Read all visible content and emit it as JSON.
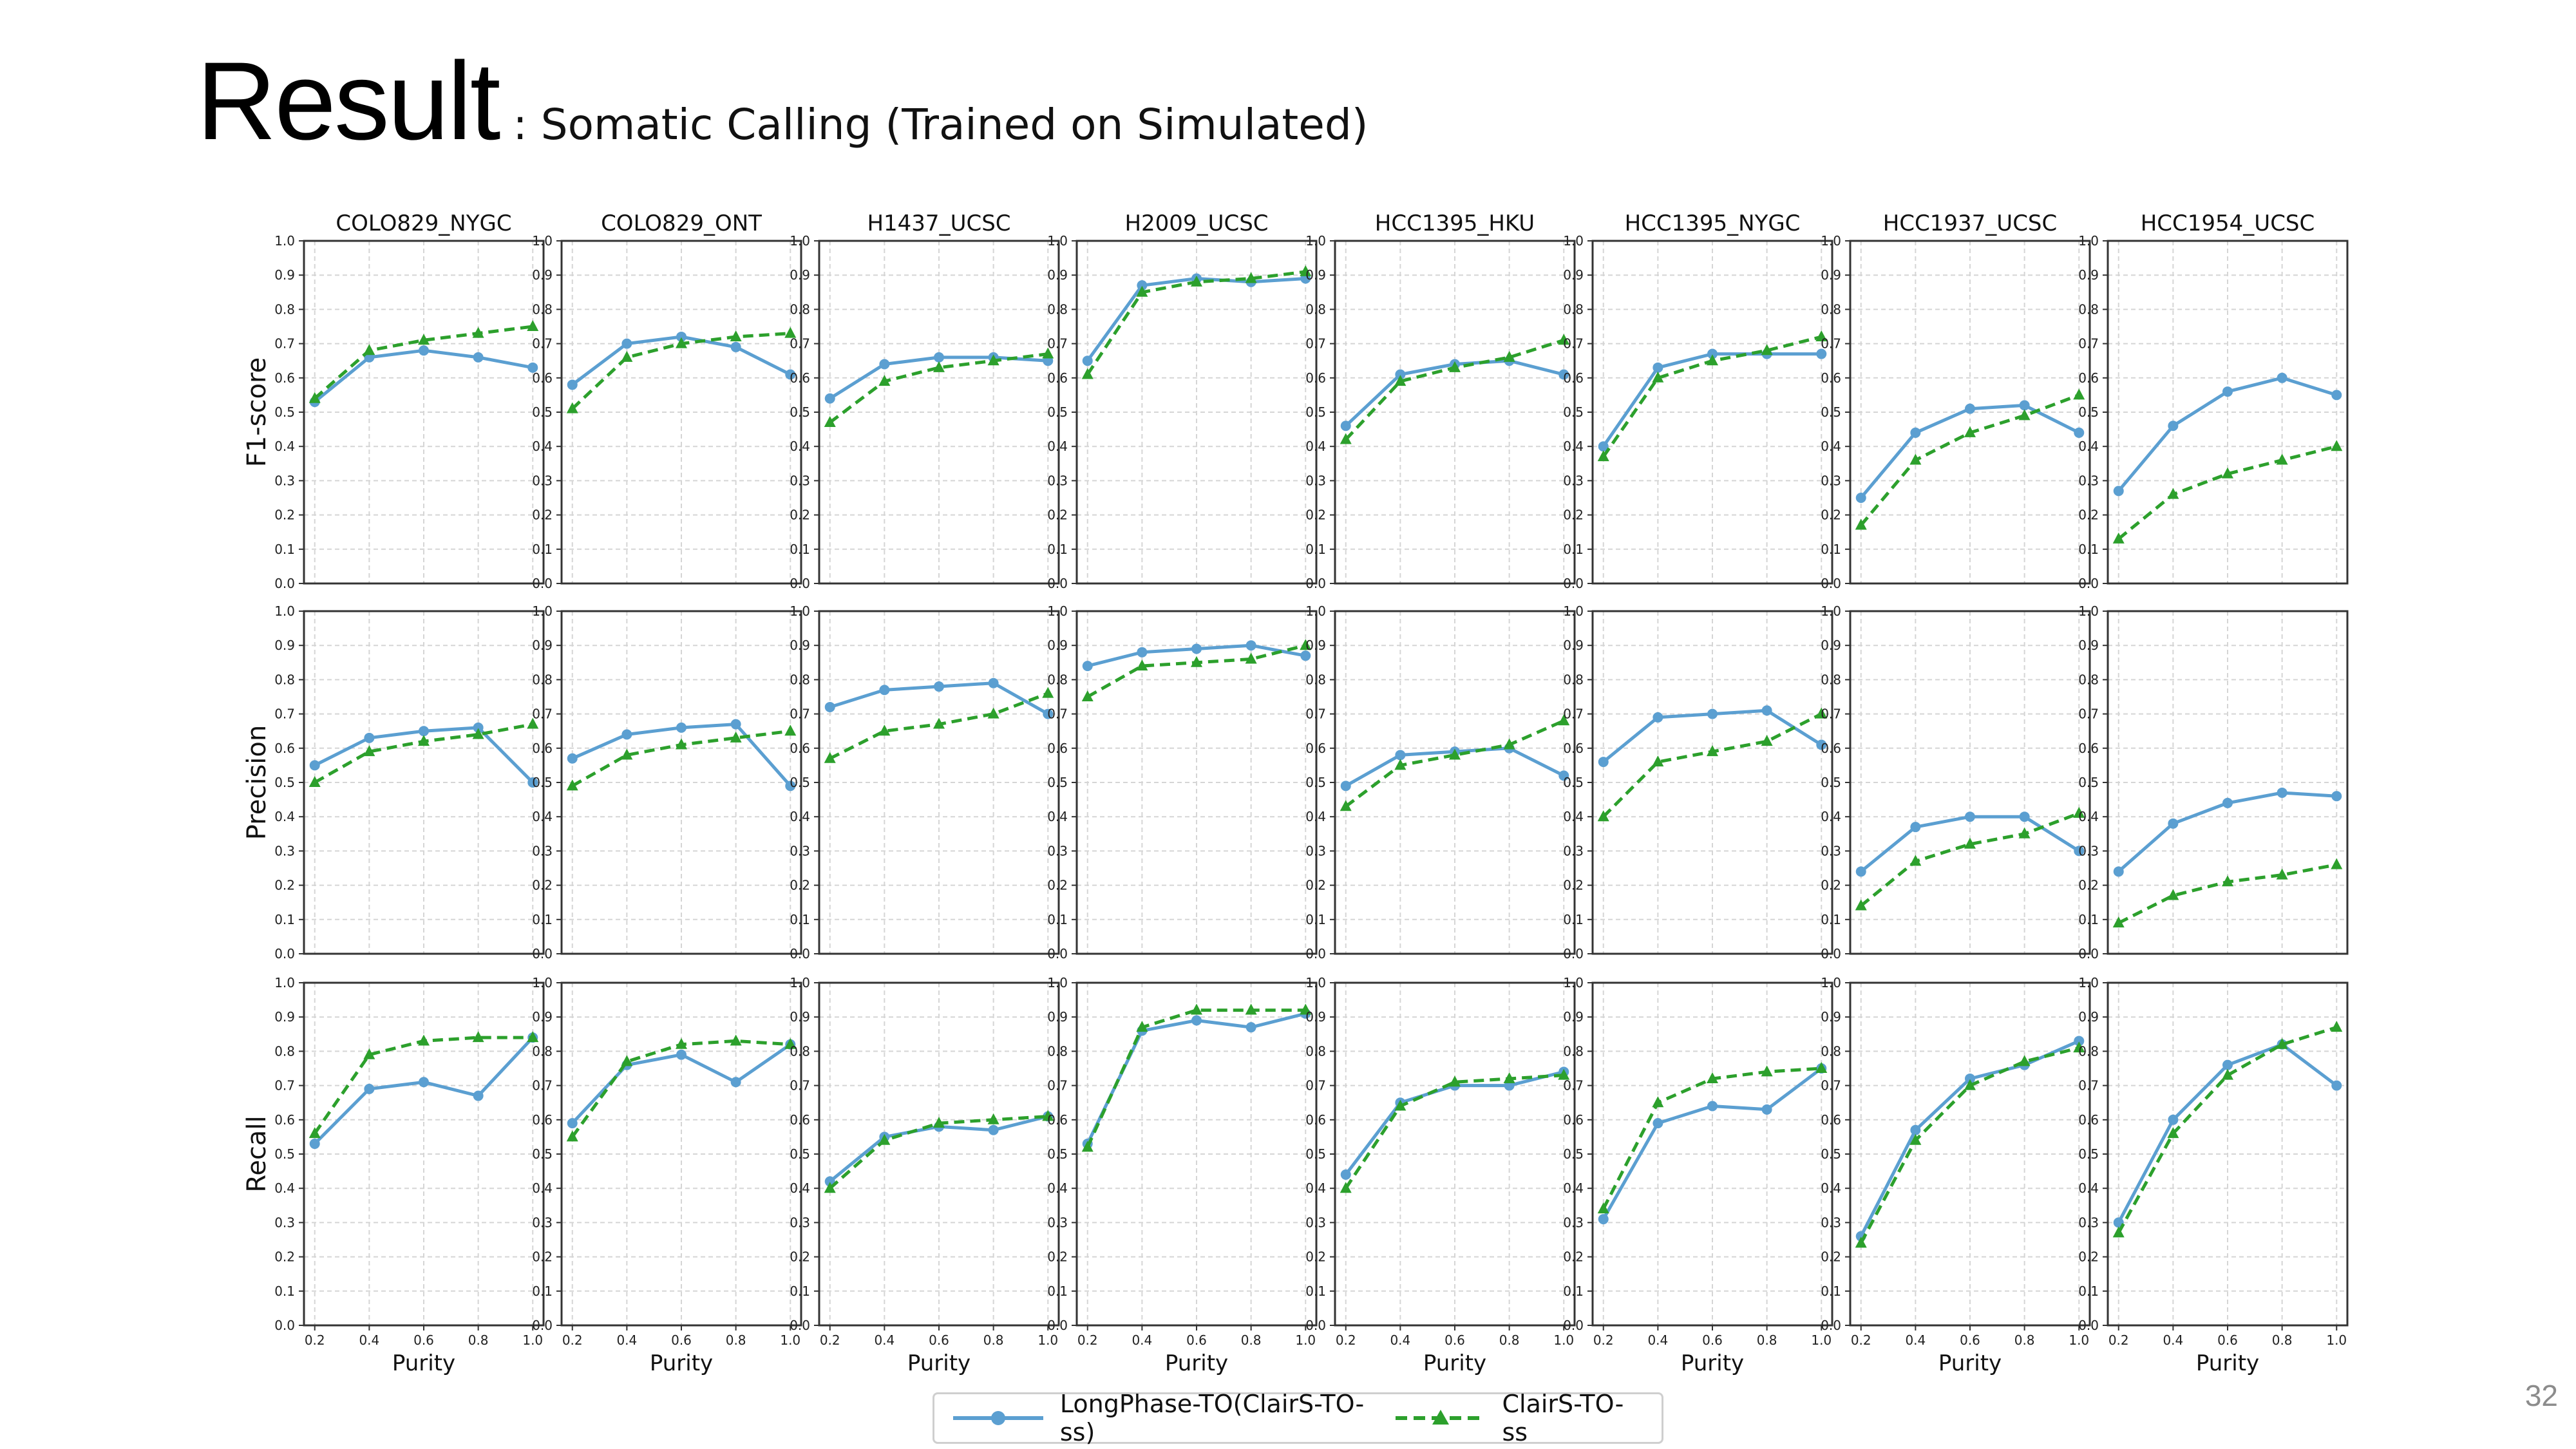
{
  "slide": {
    "title": "Result",
    "subtitle": ": Somatic Calling (Trained on Simulated)",
    "page_number": "32"
  },
  "colors": {
    "series_1": "#5b9fd1",
    "series_2": "#2ca02c",
    "grid": "#d5d5d5",
    "frame": "#333333"
  },
  "chart_data": {
    "type": "line",
    "layout": "grid of small multiples, 3 rows (metrics) x 8 columns (samples)",
    "samples": [
      "COLO829_NYGC",
      "COLO829_ONT",
      "H1437_UCSC",
      "H2009_UCSC",
      "HCC1395_HKU",
      "HCC1395_NYGC",
      "HCC1937_UCSC",
      "HCC1954_UCSC"
    ],
    "metrics": [
      "F1-score",
      "Precision",
      "Recall"
    ],
    "x": [
      0.2,
      0.4,
      0.6,
      0.8,
      1.0
    ],
    "x_tick_labels": [
      "0.2",
      "0.4",
      "0.6",
      "0.8",
      "1.0"
    ],
    "xlabel": "Purity",
    "ylim": [
      0,
      1
    ],
    "y_tick_labels": [
      "0.0",
      "0.1",
      "0.2",
      "0.3",
      "0.4",
      "0.5",
      "0.6",
      "0.7",
      "0.8",
      "0.9",
      "1.0"
    ],
    "grid": true,
    "legend_position": "bottom-center",
    "series": [
      {
        "name": "LongPhase-TO(ClairS-TO-ss)",
        "style": "solid line, circle markers",
        "values": {
          "F1-score": [
            [
              0.53,
              0.66,
              0.68,
              0.66,
              0.63
            ],
            [
              0.58,
              0.7,
              0.72,
              0.69,
              0.61
            ],
            [
              0.54,
              0.64,
              0.66,
              0.66,
              0.65
            ],
            [
              0.65,
              0.87,
              0.89,
              0.88,
              0.89
            ],
            [
              0.46,
              0.61,
              0.64,
              0.65,
              0.61
            ],
            [
              0.4,
              0.63,
              0.67,
              0.67,
              0.67
            ],
            [
              0.25,
              0.44,
              0.51,
              0.52,
              0.44
            ],
            [
              0.27,
              0.46,
              0.56,
              0.6,
              0.55
            ]
          ],
          "Precision": [
            [
              0.55,
              0.63,
              0.65,
              0.66,
              0.5
            ],
            [
              0.57,
              0.64,
              0.66,
              0.67,
              0.49
            ],
            [
              0.72,
              0.77,
              0.78,
              0.79,
              0.7
            ],
            [
              0.84,
              0.88,
              0.89,
              0.9,
              0.87
            ],
            [
              0.49,
              0.58,
              0.59,
              0.6,
              0.52
            ],
            [
              0.56,
              0.69,
              0.7,
              0.71,
              0.61
            ],
            [
              0.24,
              0.37,
              0.4,
              0.4,
              0.3
            ],
            [
              0.24,
              0.38,
              0.44,
              0.47,
              0.46
            ]
          ],
          "Recall": [
            [
              0.53,
              0.69,
              0.71,
              0.67,
              0.84
            ],
            [
              0.59,
              0.76,
              0.79,
              0.71,
              0.82
            ],
            [
              0.42,
              0.55,
              0.58,
              0.57,
              0.61
            ],
            [
              0.53,
              0.86,
              0.89,
              0.87,
              0.91
            ],
            [
              0.44,
              0.65,
              0.7,
              0.7,
              0.74
            ],
            [
              0.31,
              0.59,
              0.64,
              0.63,
              0.75
            ],
            [
              0.26,
              0.57,
              0.72,
              0.76,
              0.83
            ],
            [
              0.3,
              0.6,
              0.76,
              0.82,
              0.7
            ]
          ]
        }
      },
      {
        "name": "ClairS-TO-ss",
        "style": "dashed line, triangle markers",
        "values": {
          "F1-score": [
            [
              0.54,
              0.68,
              0.71,
              0.73,
              0.75
            ],
            [
              0.51,
              0.66,
              0.7,
              0.72,
              0.73
            ],
            [
              0.47,
              0.59,
              0.63,
              0.65,
              0.67
            ],
            [
              0.61,
              0.85,
              0.88,
              0.89,
              0.91
            ],
            [
              0.42,
              0.59,
              0.63,
              0.66,
              0.71
            ],
            [
              0.37,
              0.6,
              0.65,
              0.68,
              0.72
            ],
            [
              0.17,
              0.36,
              0.44,
              0.49,
              0.55
            ],
            [
              0.13,
              0.26,
              0.32,
              0.36,
              0.4
            ]
          ],
          "Precision": [
            [
              0.5,
              0.59,
              0.62,
              0.64,
              0.67
            ],
            [
              0.49,
              0.58,
              0.61,
              0.63,
              0.65
            ],
            [
              0.57,
              0.65,
              0.67,
              0.7,
              0.76
            ],
            [
              0.75,
              0.84,
              0.85,
              0.86,
              0.9
            ],
            [
              0.43,
              0.55,
              0.58,
              0.61,
              0.68
            ],
            [
              0.4,
              0.56,
              0.59,
              0.62,
              0.7
            ],
            [
              0.14,
              0.27,
              0.32,
              0.35,
              0.41
            ],
            [
              0.09,
              0.17,
              0.21,
              0.23,
              0.26
            ]
          ],
          "Recall": [
            [
              0.56,
              0.79,
              0.83,
              0.84,
              0.84
            ],
            [
              0.55,
              0.77,
              0.82,
              0.83,
              0.82
            ],
            [
              0.4,
              0.54,
              0.59,
              0.6,
              0.61
            ],
            [
              0.52,
              0.87,
              0.92,
              0.92,
              0.92
            ],
            [
              0.4,
              0.64,
              0.71,
              0.72,
              0.73
            ],
            [
              0.34,
              0.65,
              0.72,
              0.74,
              0.75
            ],
            [
              0.24,
              0.54,
              0.7,
              0.77,
              0.81
            ],
            [
              0.27,
              0.56,
              0.73,
              0.82,
              0.87
            ]
          ]
        }
      }
    ]
  }
}
